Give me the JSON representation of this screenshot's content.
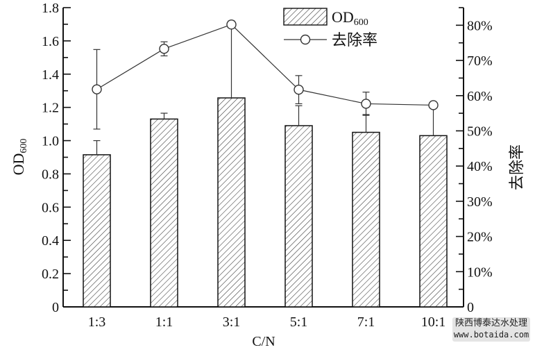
{
  "chart_data": {
    "type": "bar",
    "xlabel": "C/N",
    "ylabel": "OD",
    "ylabel_sub": "600",
    "y2label": "去除率",
    "categories": [
      "1:3",
      "1:1",
      "3:1",
      "5:1",
      "7:1",
      "10:1"
    ],
    "ylim": [
      0,
      1.8
    ],
    "y2lim": [
      0,
      85
    ],
    "yticks": [
      "0",
      "0.2",
      "0.4",
      "0.6",
      "0.8",
      "1.0",
      "1.2",
      "1.4",
      "1.6",
      "1.8"
    ],
    "y2ticks": [
      "0",
      "10%",
      "20%",
      "30%",
      "40%",
      "50%",
      "60%",
      "70%",
      "80%"
    ],
    "series": [
      {
        "name": "OD",
        "name_sub": "600",
        "type": "bar",
        "axis": "left",
        "pattern": "hatched",
        "values": [
          0.915,
          1.13,
          1.257,
          1.09,
          1.05,
          1.03
        ],
        "errors": [
          0.085,
          0.035,
          0.44,
          0.12,
          0.107,
          0.18
        ]
      },
      {
        "name": "去除率",
        "type": "line",
        "axis": "right",
        "marker": "open-circle",
        "unit": "%",
        "values": [
          61.8,
          73.3,
          80.2,
          61.7,
          57.7,
          57.3
        ],
        "errors": [
          11.3,
          2.0,
          1.0,
          4.0,
          3.3,
          0
        ]
      }
    ],
    "legend": "top-center",
    "grid": false
  },
  "watermark": {
    "line1": "陕西博泰达水处理",
    "line2": "www.botaida.com"
  }
}
